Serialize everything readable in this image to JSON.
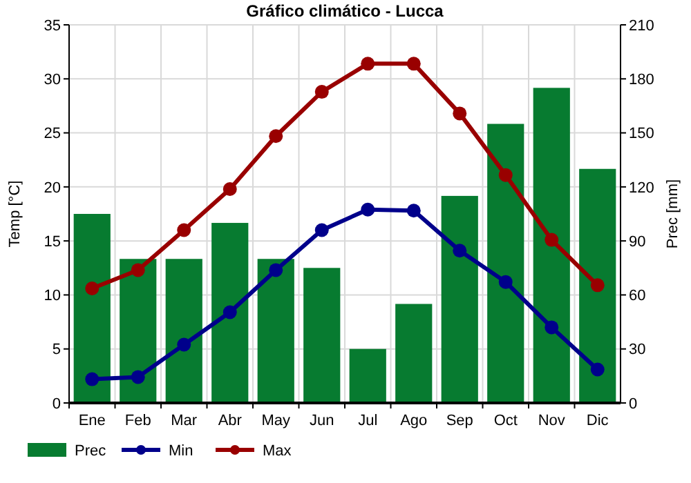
{
  "chart_data": {
    "type": "bar",
    "title": "Gráfico climático - Lucca",
    "ylabel": "Temp [°C]",
    "y2label": "Prec [mm]",
    "categories": [
      "Ene",
      "Feb",
      "Mar",
      "Abr",
      "May",
      "Jun",
      "Jul",
      "Ago",
      "Sep",
      "Oct",
      "Nov",
      "Dic"
    ],
    "series": [
      {
        "name": "Prec",
        "axis": "y2",
        "color": "#077b30",
        "values": [
          105,
          80,
          80,
          100,
          80,
          75,
          30,
          55,
          115,
          155,
          175,
          130
        ]
      },
      {
        "name": "Min",
        "type": "line",
        "color": "#00008b",
        "marker": "circle",
        "values": [
          2.2,
          2.4,
          5.4,
          8.4,
          12.3,
          16.0,
          17.9,
          17.8,
          14.1,
          11.2,
          7.0,
          3.1
        ]
      },
      {
        "name": "Max",
        "type": "line",
        "color": "#990000",
        "marker": "circle",
        "values": [
          10.6,
          12.3,
          16.0,
          19.8,
          24.7,
          28.8,
          31.4,
          31.4,
          26.8,
          21.1,
          15.1,
          10.9
        ]
      }
    ],
    "ylim": [
      0,
      35
    ],
    "yticks": [
      0,
      5,
      10,
      15,
      20,
      25,
      30,
      35
    ],
    "y2lim": [
      0,
      210
    ],
    "y2ticks": [
      0,
      30,
      60,
      90,
      120,
      150,
      180,
      210
    ],
    "grid": true,
    "legend": "bottom"
  }
}
